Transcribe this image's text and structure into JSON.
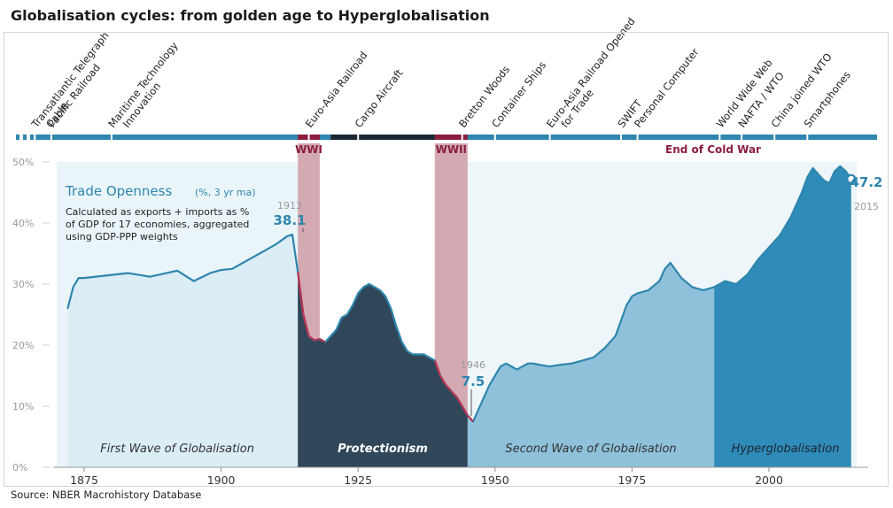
{
  "title": "Globalisation cycles: from golden age to Hyperglobalisation",
  "source": "Source: NBER Macrohistory Database",
  "colors": {
    "line": "#2f86ae",
    "war_band": "#c48c98",
    "war_text": "#8b1e3f",
    "timeline": "#2f86ae",
    "timeline_dark": "#1b2733",
    "era1_fill": "#d9ecf4",
    "era2_fill": "#2f4758",
    "era3_fill": "#8fc1da",
    "era4_fill": "#2f8bb8",
    "axis_text": "#9a9a9a"
  },
  "events": [
    {
      "year": 1866,
      "label": "Transatlantic Telegraph Cable"
    },
    {
      "year": 1869,
      "label": "Pacific Railroad"
    },
    {
      "year": 1880,
      "label": "Maritime Technology Innovation"
    },
    {
      "year": 1916,
      "label": "Euro-Asia Railroad"
    },
    {
      "year": 1925,
      "label": "Cargo Aircraft"
    },
    {
      "year": 1944,
      "label": "Bretton Woods"
    },
    {
      "year": 1950,
      "label": "Container Ships"
    },
    {
      "year": 1960,
      "label": "Euro-Asia Railroad Opened for Trade"
    },
    {
      "year": 1973,
      "label": "SWIFT"
    },
    {
      "year": 1976,
      "label": "Personal Computer"
    },
    {
      "year": 1991,
      "label": "World Wide Web"
    },
    {
      "year": 1995,
      "label": "NAFTA / WTO"
    },
    {
      "year": 2001,
      "label": "China joined WTO"
    },
    {
      "year": 2007,
      "label": "Smartphones"
    }
  ],
  "wars": [
    {
      "label": "WWI",
      "start": 1914,
      "end": 1918
    },
    {
      "label": "WWII",
      "start": 1939,
      "end": 1945
    }
  ],
  "cold_war_label": "End of Cold War",
  "annotation": {
    "title": "Trade Openness",
    "title_suffix": "(%, 3 yr ma)",
    "lines": [
      "Calculated as exports + imports as %",
      "of GDP for 17 economies, aggregated",
      "using GDP-PPP weights"
    ]
  },
  "callouts": [
    {
      "year_label": "1913",
      "value_label": "38.1"
    },
    {
      "year_label": "1946",
      "value_label": "7.5"
    },
    {
      "year_label": "2015",
      "value_label": "47.2"
    }
  ],
  "eras": [
    {
      "label": "First Wave of Globalisation",
      "start": 1870,
      "end": 1914
    },
    {
      "label": "Protectionism",
      "start": 1914,
      "end": 1945
    },
    {
      "label": "Second Wave of Globalisation",
      "start": 1945,
      "end": 1990
    },
    {
      "label": "Hyperglobalisation",
      "start": 1990,
      "end": 2016
    }
  ],
  "chart_data": {
    "type": "area",
    "title": "Trade Openness",
    "ylabel": "",
    "xlim": [
      1870,
      2016
    ],
    "ylim": [
      0,
      50
    ],
    "x_ticks": [
      "1875",
      "1900",
      "1925",
      "1950",
      "1975",
      "2000"
    ],
    "y_ticks": [
      "0%",
      "10%",
      "20%",
      "30%",
      "40%",
      "50%"
    ],
    "grid": false,
    "series": [
      {
        "name": "Trade Openness",
        "x": [
          1872,
          1873,
          1874,
          1875,
          1878,
          1880,
          1883,
          1885,
          1887,
          1890,
          1892,
          1895,
          1898,
          1900,
          1902,
          1905,
          1908,
          1910,
          1912,
          1913,
          1914,
          1915,
          1916,
          1917,
          1918,
          1919,
          1920,
          1921,
          1922,
          1923,
          1924,
          1925,
          1926,
          1927,
          1928,
          1929,
          1930,
          1931,
          1932,
          1933,
          1934,
          1935,
          1936,
          1937,
          1938,
          1939,
          1940,
          1941,
          1942,
          1943,
          1944,
          1945,
          1946,
          1947,
          1948,
          1949,
          1950,
          1951,
          1952,
          1953,
          1954,
          1955,
          1956,
          1957,
          1958,
          1960,
          1962,
          1964,
          1966,
          1968,
          1970,
          1972,
          1974,
          1975,
          1976,
          1978,
          1980,
          1981,
          1982,
          1984,
          1986,
          1988,
          1990,
          1992,
          1994,
          1996,
          1998,
          2000,
          2002,
          2004,
          2006,
          2007,
          2008,
          2009,
          2010,
          2011,
          2012,
          2013,
          2014,
          2015
        ],
        "values": [
          26.0,
          29.5,
          31.0,
          31.0,
          31.3,
          31.5,
          31.8,
          31.5,
          31.2,
          31.8,
          32.2,
          30.5,
          31.8,
          32.3,
          32.5,
          34.0,
          35.5,
          36.5,
          37.8,
          38.1,
          32.0,
          25.0,
          21.5,
          20.8,
          21.0,
          20.5,
          21.5,
          22.5,
          24.5,
          25.0,
          26.5,
          28.5,
          29.5,
          30.0,
          29.5,
          29.0,
          28.0,
          26.0,
          23.0,
          20.5,
          19.0,
          18.5,
          18.5,
          18.5,
          18.0,
          17.5,
          15.0,
          13.5,
          12.5,
          11.5,
          10.0,
          8.5,
          7.5,
          9.5,
          11.5,
          13.5,
          15.0,
          16.5,
          17.0,
          16.5,
          16.0,
          16.5,
          17.0,
          17.0,
          16.8,
          16.5,
          16.8,
          17.0,
          17.5,
          18.0,
          19.5,
          21.5,
          26.5,
          28.0,
          28.5,
          29.0,
          30.5,
          32.5,
          33.5,
          31.0,
          29.5,
          29.0,
          29.5,
          30.5,
          30.0,
          31.5,
          34.0,
          36.0,
          38.0,
          41.0,
          45.0,
          47.5,
          49.0,
          48.0,
          47.0,
          46.5,
          48.5,
          49.3,
          48.5,
          47.2
        ]
      }
    ]
  }
}
